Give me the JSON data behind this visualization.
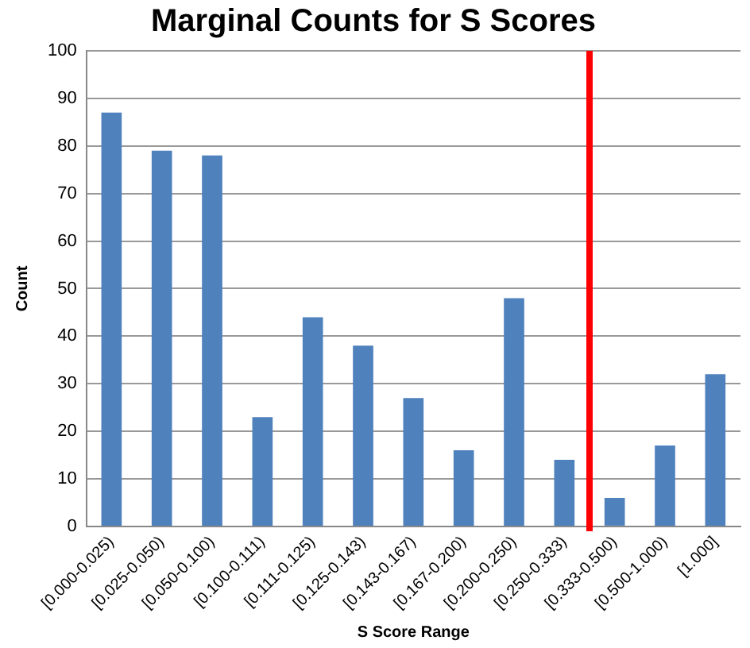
{
  "chart_data": {
    "type": "bar",
    "title": "Marginal Counts for S Scores",
    "xlabel": "S Score Range",
    "ylabel": "Count",
    "categories": [
      "[0.000-0.025)",
      "[0.025-0.050)",
      "[0.050-0.100)",
      "[0.100-0.111)",
      "[0.111-0.125)",
      "[0.125-0.143)",
      "[0.143-0.167)",
      "[0.167-0.200)",
      "[0.200-0.250)",
      "[0.250-0.333)",
      "[0.333-0.500)",
      "[0.500-1.000)",
      "[1.000]"
    ],
    "values": [
      87,
      79,
      78,
      23,
      44,
      38,
      27,
      16,
      48,
      14,
      6,
      17,
      32
    ],
    "color": "#4f81bd",
    "ylim": [
      0,
      100
    ],
    "yticks": [
      0,
      10,
      20,
      30,
      40,
      50,
      60,
      70,
      80,
      90,
      100
    ],
    "grid": "y",
    "ref_lines": [
      {
        "axis": "x",
        "value": "[0.333-0.500)",
        "color": "#ff0000"
      }
    ]
  }
}
